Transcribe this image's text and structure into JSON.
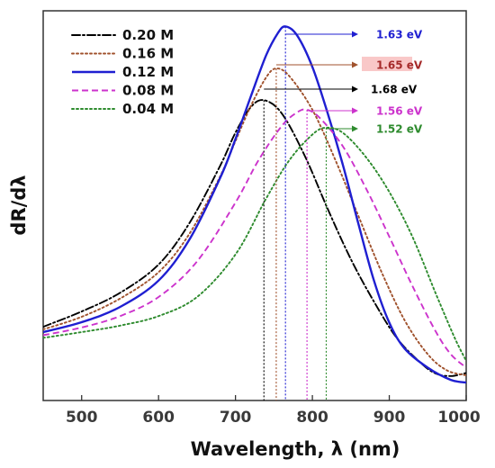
{
  "chart_data": {
    "type": "line",
    "title": "",
    "xlabel": "Wavelength, λ (nm)",
    "ylabel": "dR/dλ",
    "xlim": [
      450,
      1000
    ],
    "ylim": [
      0,
      1.02
    ],
    "xticks": [
      500,
      600,
      700,
      800,
      900,
      1000
    ],
    "y_tick_labels": false,
    "grid": false,
    "legend_position": "top-left",
    "series": [
      {
        "name": "0.20 M",
        "color": "#000000",
        "dash": "dashdot",
        "peak_x": 737,
        "peak_label": "1.68 eV",
        "label_color": "#000000",
        "points": [
          [
            450,
            0.193
          ],
          [
            500,
            0.233
          ],
          [
            550,
            0.282
          ],
          [
            600,
            0.356
          ],
          [
            640,
            0.464
          ],
          [
            680,
            0.614
          ],
          [
            700,
            0.701
          ],
          [
            720,
            0.768
          ],
          [
            737,
            0.786
          ],
          [
            760,
            0.752
          ],
          [
            790,
            0.641
          ],
          [
            820,
            0.501
          ],
          [
            850,
            0.37
          ],
          [
            880,
            0.259
          ],
          [
            910,
            0.163
          ],
          [
            940,
            0.1
          ],
          [
            960,
            0.071
          ],
          [
            980,
            0.064
          ],
          [
            1000,
            0.072
          ]
        ]
      },
      {
        "name": "0.16 M",
        "color": "#a0522d",
        "dash": "dotted",
        "peak_x": 753,
        "peak_label": "1.65 eV",
        "label_color": "#a52a2a",
        "label_bg": "#f9c8c8",
        "points": [
          [
            450,
            0.186
          ],
          [
            500,
            0.219
          ],
          [
            550,
            0.267
          ],
          [
            600,
            0.336
          ],
          [
            640,
            0.436
          ],
          [
            680,
            0.586
          ],
          [
            700,
            0.679
          ],
          [
            720,
            0.771
          ],
          [
            740,
            0.846
          ],
          [
            753,
            0.869
          ],
          [
            770,
            0.849
          ],
          [
            800,
            0.761
          ],
          [
            830,
            0.629
          ],
          [
            860,
            0.482
          ],
          [
            890,
            0.336
          ],
          [
            920,
            0.21
          ],
          [
            950,
            0.121
          ],
          [
            975,
            0.079
          ],
          [
            1000,
            0.066
          ]
        ]
      },
      {
        "name": "0.12 M",
        "color": "#1f1fd1",
        "dash": "solid",
        "peak_x": 765,
        "peak_label": "1.63 eV",
        "label_color": "#1f1fd1",
        "points": [
          [
            450,
            0.179
          ],
          [
            500,
            0.205
          ],
          [
            550,
            0.245
          ],
          [
            600,
            0.314
          ],
          [
            640,
            0.421
          ],
          [
            680,
            0.582
          ],
          [
            700,
            0.684
          ],
          [
            720,
            0.796
          ],
          [
            740,
            0.904
          ],
          [
            755,
            0.961
          ],
          [
            765,
            0.979
          ],
          [
            780,
            0.956
          ],
          [
            800,
            0.873
          ],
          [
            820,
            0.751
          ],
          [
            840,
            0.614
          ],
          [
            860,
            0.461
          ],
          [
            880,
            0.314
          ],
          [
            900,
            0.204
          ],
          [
            920,
            0.136
          ],
          [
            950,
            0.086
          ],
          [
            980,
            0.054
          ],
          [
            1000,
            0.047
          ]
        ]
      },
      {
        "name": "0.08 M",
        "color": "#cc33cc",
        "dash": "dashed",
        "peak_x": 793,
        "peak_label": "1.56 eV",
        "label_color": "#cc33cc",
        "points": [
          [
            450,
            0.171
          ],
          [
            500,
            0.191
          ],
          [
            550,
            0.221
          ],
          [
            600,
            0.271
          ],
          [
            650,
            0.364
          ],
          [
            700,
            0.518
          ],
          [
            730,
            0.629
          ],
          [
            760,
            0.718
          ],
          [
            780,
            0.754
          ],
          [
            793,
            0.761
          ],
          [
            810,
            0.739
          ],
          [
            840,
            0.664
          ],
          [
            870,
            0.554
          ],
          [
            900,
            0.429
          ],
          [
            930,
            0.3
          ],
          [
            960,
            0.182
          ],
          [
            980,
            0.121
          ],
          [
            1000,
            0.086
          ]
        ]
      },
      {
        "name": "0.04 M",
        "color": "#2e8b2e",
        "dash": "dotted",
        "peak_x": 818,
        "peak_label": "1.52 eV",
        "label_color": "#2e8b2e",
        "points": [
          [
            450,
            0.164
          ],
          [
            500,
            0.179
          ],
          [
            550,
            0.196
          ],
          [
            600,
            0.221
          ],
          [
            650,
            0.271
          ],
          [
            700,
            0.382
          ],
          [
            740,
            0.529
          ],
          [
            770,
            0.629
          ],
          [
            800,
            0.696
          ],
          [
            818,
            0.714
          ],
          [
            840,
            0.7
          ],
          [
            870,
            0.636
          ],
          [
            900,
            0.546
          ],
          [
            930,
            0.429
          ],
          [
            960,
            0.282
          ],
          [
            985,
            0.164
          ],
          [
            1000,
            0.104
          ]
        ]
      }
    ]
  }
}
